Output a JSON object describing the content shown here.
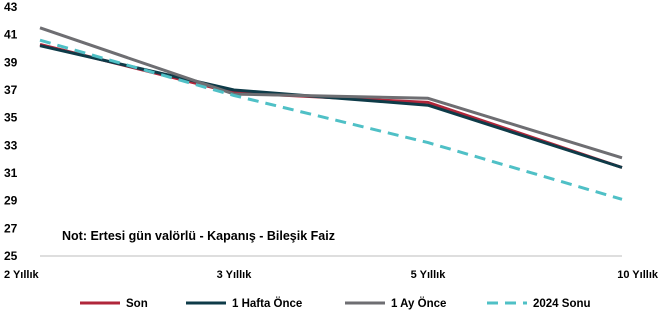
{
  "chart_data": {
    "type": "line",
    "categories": [
      "2 Yıllık",
      "3 Yıllık",
      "5 Yıllık",
      "10 Yıllık"
    ],
    "ylim": [
      25,
      43
    ],
    "yticks": [
      25,
      27,
      29,
      31,
      33,
      35,
      37,
      39,
      41,
      43
    ],
    "annotation": "Not: Ertesi gün valörlü - Kapanış - Bileşik Faiz",
    "grid": false,
    "legend_position": "bottom",
    "series": [
      {
        "name": "Son",
        "values": [
          40.3,
          36.8,
          36.1,
          31.4
        ],
        "color": "#b0263a",
        "dashed": false
      },
      {
        "name": "1 Hafta Önce",
        "values": [
          40.2,
          37.0,
          35.9,
          31.4
        ],
        "color": "#0e3b48",
        "dashed": false
      },
      {
        "name": "1 Ay Önce",
        "values": [
          41.5,
          36.7,
          36.4,
          32.1
        ],
        "color": "#6e6e72",
        "dashed": false
      },
      {
        "name": "2024 Sonu",
        "values": [
          40.6,
          36.6,
          33.2,
          29.1
        ],
        "color": "#4fc0c6",
        "dashed": true
      }
    ]
  }
}
